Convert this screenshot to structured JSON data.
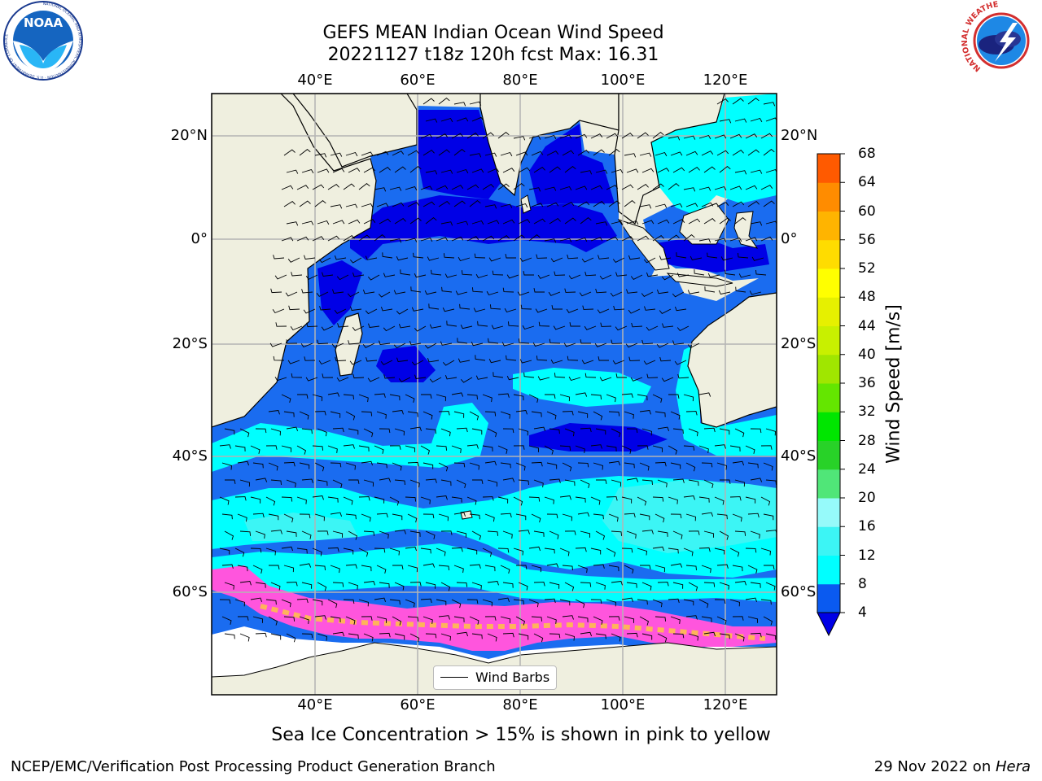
{
  "header": {
    "title_line1": "GEFS MEAN Indian Ocean Wind Speed",
    "title_line2": "20221127 t18z 120h fcst   Max: 16.31",
    "logo_left_text": "NOAA",
    "logo_left_ring": "NATIONAL OCEANIC AND ATMOSPHERIC ADMINISTRATION · U.S. DEPARTMENT OF COMMERCE",
    "logo_right_ring": "NATIONAL WEATHER SERVICE"
  },
  "axes": {
    "lon_ticks": [
      "40°E",
      "60°E",
      "80°E",
      "100°E",
      "120°E"
    ],
    "lat_ticks": [
      "20°N",
      "0°",
      "20°S",
      "40°S",
      "60°S"
    ]
  },
  "colorbar": {
    "title": "Wind Speed [m/s]",
    "ticks": [
      "4",
      "8",
      "12",
      "16",
      "20",
      "24",
      "28",
      "32",
      "36",
      "40",
      "44",
      "48",
      "52",
      "56",
      "60",
      "64",
      "68"
    ],
    "colors": [
      "#0a5af0",
      "#00ffff",
      "#3cf5f5",
      "#96fafa",
      "#50e678",
      "#28d228",
      "#00e600",
      "#64e600",
      "#a0e600",
      "#c8f000",
      "#e6f000",
      "#ffff00",
      "#ffdc00",
      "#ffb400",
      "#ff8c00",
      "#ff5a00",
      "#ff3200",
      "#ff0000"
    ],
    "below_color": "#0000e6"
  },
  "map_colors": {
    "land": "#efefdf",
    "ice_free": "#ffffff",
    "band_4_8": "#1a6cf0",
    "band_lt4": "#0000e6",
    "band_8_12": "#00ffff",
    "band_12_16": "#3cf5f5",
    "ice": "#ff55dd"
  },
  "legend": {
    "label": "Wind Barbs"
  },
  "caption": "Sea Ice Concentration > 15% is shown in pink to yellow",
  "footer": {
    "left": "NCEP/EMC/Verification Post Processing Product Generation Branch",
    "right_date": "29 Nov 2022 on ",
    "right_host": "Hera"
  }
}
